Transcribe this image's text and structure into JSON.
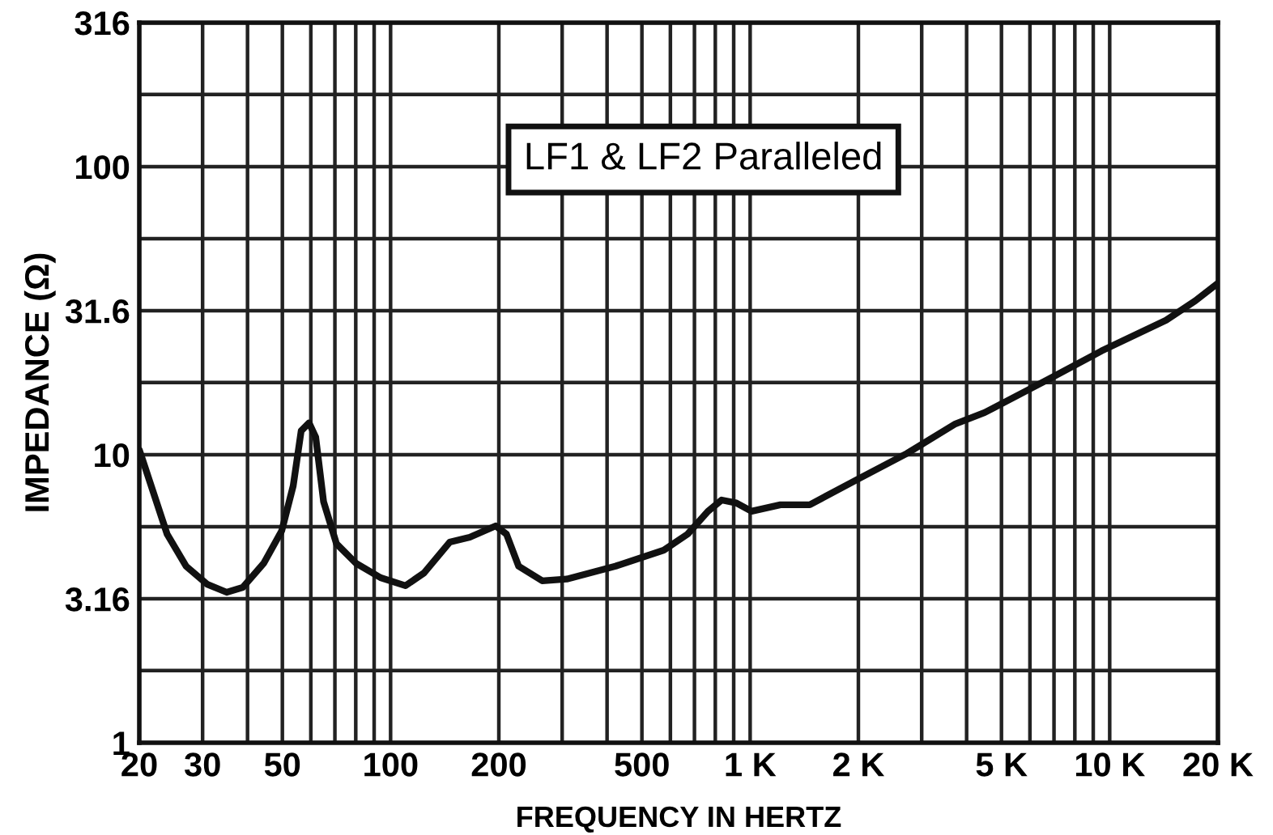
{
  "chart_data": {
    "type": "line",
    "xlabel": "FREQUENCY IN HERTZ",
    "ylabel": "IMPEDANCE (Ω)",
    "log": "xy",
    "grid": true,
    "line_style": "solid",
    "marker": "none",
    "annotations": [
      "LF1 & LF2 Paralleled"
    ],
    "xlim": [
      20,
      20000
    ],
    "ylim": [
      1,
      316
    ],
    "xticks": [
      20,
      30,
      {
        "value": 40,
        "label": null
      },
      50,
      {
        "value": 60,
        "label": null
      },
      {
        "value": 70,
        "label": null
      },
      {
        "value": 80,
        "label": null
      },
      {
        "value": 90,
        "label": null
      },
      100,
      200,
      {
        "value": 300,
        "label": null
      },
      {
        "value": 400,
        "label": null
      },
      500,
      {
        "value": 600,
        "label": null
      },
      {
        "value": 700,
        "label": null
      },
      {
        "value": 800,
        "label": null
      },
      {
        "value": 900,
        "label": null
      },
      {
        "value": 1000,
        "label": "1 K"
      },
      {
        "value": 2000,
        "label": "2 K"
      },
      {
        "value": 3000,
        "label": null
      },
      {
        "value": 4000,
        "label": null
      },
      {
        "value": 5000,
        "label": "5 K"
      },
      {
        "value": 6000,
        "label": null
      },
      {
        "value": 7000,
        "label": null
      },
      {
        "value": 8000,
        "label": null
      },
      {
        "value": 9000,
        "label": null
      },
      {
        "value": 10000,
        "label": "10 K"
      },
      {
        "value": 20000,
        "label": "20 K"
      }
    ],
    "yticks": [
      1,
      {
        "value": 1.78,
        "label": null
      },
      3.16,
      {
        "value": 5.62,
        "label": null
      },
      10,
      {
        "value": 17.8,
        "label": null
      },
      31.6,
      {
        "value": 56.2,
        "label": null
      },
      100,
      {
        "value": 178,
        "label": null
      },
      316
    ],
    "series": [
      {
        "color": "#111111",
        "x": [
          20,
          23.9,
          27,
          30.9,
          35,
          38.8,
          44.4,
          49.8,
          53.6,
          56.4,
          59.3,
          61.9,
          65.1,
          70.7,
          80.1,
          93.8,
          110,
          124,
          146,
          166,
          196,
          210,
          227,
          264,
          309,
          422,
          575,
          670,
          763,
          833,
          915,
          1009,
          1214,
          1465,
          2000,
          2730,
          3725,
          4490,
          6940,
          9480,
          14350,
          17300,
          20000
        ],
        "values": [
          10.4,
          5.3,
          4.1,
          3.55,
          3.33,
          3.46,
          4.2,
          5.44,
          7.8,
          12.1,
          12.9,
          11.5,
          6.87,
          4.91,
          4.2,
          3.74,
          3.51,
          3.89,
          4.97,
          5.17,
          5.66,
          5.3,
          4.1,
          3.65,
          3.7,
          4.1,
          4.66,
          5.3,
          6.36,
          6.96,
          6.8,
          6.36,
          6.7,
          6.7,
          8.24,
          10.1,
          12.8,
          14,
          18.6,
          22.9,
          29.3,
          34.2,
          39.4
        ]
      }
    ]
  }
}
